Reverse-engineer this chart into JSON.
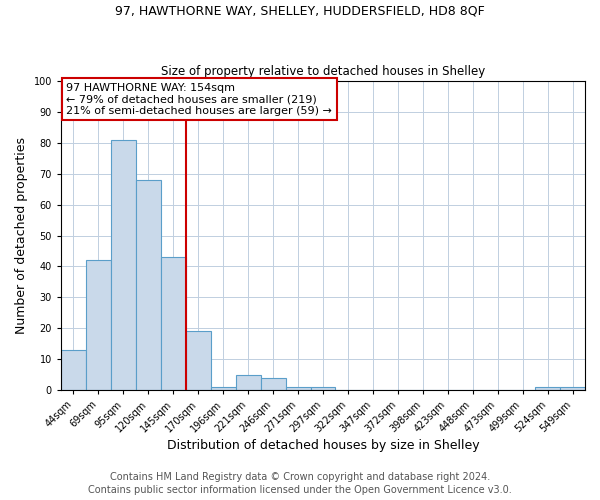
{
  "title": "97, HAWTHORNE WAY, SHELLEY, HUDDERSFIELD, HD8 8QF",
  "subtitle": "Size of property relative to detached houses in Shelley",
  "xlabel": "Distribution of detached houses by size in Shelley",
  "ylabel": "Number of detached properties",
  "bins": [
    "44sqm",
    "69sqm",
    "95sqm",
    "120sqm",
    "145sqm",
    "170sqm",
    "196sqm",
    "221sqm",
    "246sqm",
    "271sqm",
    "297sqm",
    "322sqm",
    "347sqm",
    "372sqm",
    "398sqm",
    "423sqm",
    "448sqm",
    "473sqm",
    "499sqm",
    "524sqm",
    "549sqm"
  ],
  "values": [
    13,
    42,
    81,
    68,
    43,
    19,
    1,
    5,
    4,
    1,
    1,
    0,
    0,
    0,
    0,
    0,
    0,
    0,
    0,
    1,
    1
  ],
  "bar_color": "#c9d9ea",
  "bar_edge_color": "#5a9ec9",
  "vline_index": 4.5,
  "annotation_line1": "97 HAWTHORNE WAY: 154sqm",
  "annotation_line2": "← 79% of detached houses are smaller (219)",
  "annotation_line3": "21% of semi-detached houses are larger (59) →",
  "annotation_box_color": "#ffffff",
  "annotation_box_edge_color": "#cc0000",
  "vline_color": "#cc0000",
  "footer1": "Contains HM Land Registry data © Crown copyright and database right 2024.",
  "footer2": "Contains public sector information licensed under the Open Government Licence v3.0.",
  "ylim": [
    0,
    100
  ],
  "yticks": [
    0,
    10,
    20,
    30,
    40,
    50,
    60,
    70,
    80,
    90,
    100
  ],
  "title_fontsize": 9,
  "subtitle_fontsize": 8.5,
  "axis_label_fontsize": 9,
  "tick_fontsize": 7,
  "annotation_fontsize": 8,
  "footer_fontsize": 7,
  "background_color": "#ffffff",
  "grid_color": "#c0cfe0"
}
